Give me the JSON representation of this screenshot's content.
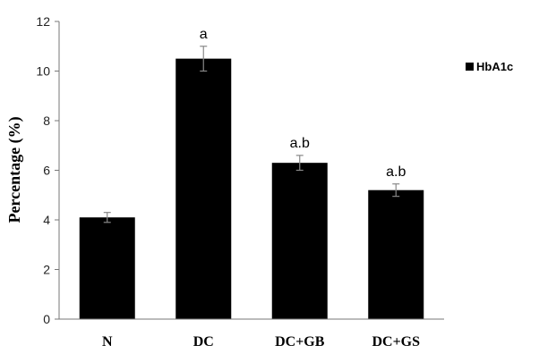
{
  "chart_data": {
    "type": "bar",
    "title": "",
    "xlabel": "",
    "ylabel": "Percentage (%)",
    "ylim": [
      0,
      12
    ],
    "yticks": [
      0,
      2,
      4,
      6,
      8,
      10,
      12
    ],
    "ytick_labels": [
      "0",
      "2",
      "4",
      "6",
      "8",
      "10",
      "12"
    ],
    "grid": false,
    "legend_position": "top-right",
    "categories": [
      "N",
      "DC",
      "DC+GB",
      "DC+GS"
    ],
    "series": [
      {
        "name": "HbA1c",
        "color": "#000000",
        "values": [
          4.1,
          10.5,
          6.3,
          5.2
        ],
        "error": [
          0.2,
          0.5,
          0.3,
          0.25
        ],
        "annotations": [
          "",
          "a",
          "a.b",
          "a.b"
        ]
      }
    ]
  }
}
